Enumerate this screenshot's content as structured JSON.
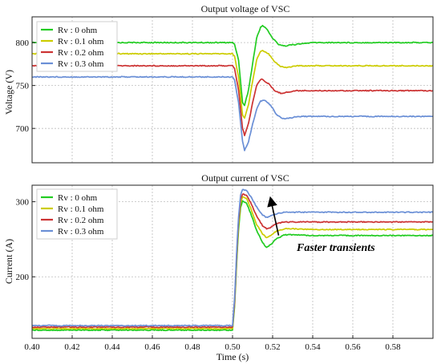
{
  "chart_data": [
    {
      "type": "line",
      "title": "Output voltage of VSC",
      "xlabel": "",
      "ylabel": "Voltage (V)",
      "xlim": [
        0.4,
        0.6
      ],
      "ylim": [
        660,
        830
      ],
      "yticks": [
        700,
        750,
        800
      ],
      "legend": "top-left",
      "grid": true,
      "series": [
        {
          "name": "Rv : 0 ohm",
          "color": "#22cc22",
          "points": [
            [
              0.4,
              800
            ],
            [
              0.5,
              800
            ],
            [
              0.501,
              798
            ],
            [
              0.503,
              780
            ],
            [
              0.505,
              730
            ],
            [
              0.506,
              727
            ],
            [
              0.508,
              745
            ],
            [
              0.51,
              775
            ],
            [
              0.512,
              805
            ],
            [
              0.514,
              818
            ],
            [
              0.515,
              820
            ],
            [
              0.517,
              816
            ],
            [
              0.52,
              805
            ],
            [
              0.523,
              798
            ],
            [
              0.526,
              796
            ],
            [
              0.528,
              797
            ],
            [
              0.532,
              798
            ],
            [
              0.54,
              800
            ],
            [
              0.6,
              800
            ]
          ]
        },
        {
          "name": "Rv : 0.1 ohm",
          "color": "#cccc00",
          "points": [
            [
              0.4,
              787
            ],
            [
              0.5,
              787
            ],
            [
              0.501,
              784
            ],
            [
              0.503,
              760
            ],
            [
              0.505,
              716
            ],
            [
              0.506,
              712
            ],
            [
              0.508,
              728
            ],
            [
              0.51,
              755
            ],
            [
              0.512,
              780
            ],
            [
              0.514,
              790
            ],
            [
              0.515,
              791
            ],
            [
              0.518,
              787
            ],
            [
              0.521,
              778
            ],
            [
              0.524,
              772
            ],
            [
              0.527,
              771
            ],
            [
              0.532,
              773
            ],
            [
              0.54,
              773
            ],
            [
              0.6,
              773
            ]
          ]
        },
        {
          "name": "Rv : 0.2 ohm",
          "color": "#cc3333",
          "points": [
            [
              0.4,
              773
            ],
            [
              0.5,
              773
            ],
            [
              0.501,
              770
            ],
            [
              0.503,
              745
            ],
            [
              0.505,
              700
            ],
            [
              0.506,
              692
            ],
            [
              0.508,
              706
            ],
            [
              0.51,
              730
            ],
            [
              0.512,
              750
            ],
            [
              0.514,
              757
            ],
            [
              0.515,
              757
            ],
            [
              0.518,
              752
            ],
            [
              0.521,
              744
            ],
            [
              0.524,
              741
            ],
            [
              0.527,
              742
            ],
            [
              0.532,
              744
            ],
            [
              0.54,
              744
            ],
            [
              0.6,
              744
            ]
          ]
        },
        {
          "name": "Rv : 0.3 ohm",
          "color": "#6a8fd6",
          "points": [
            [
              0.4,
              760
            ],
            [
              0.5,
              760
            ],
            [
              0.501,
              757
            ],
            [
              0.503,
              730
            ],
            [
              0.505,
              685
            ],
            [
              0.506,
              674
            ],
            [
              0.508,
              685
            ],
            [
              0.51,
              705
            ],
            [
              0.512,
              722
            ],
            [
              0.514,
              732
            ],
            [
              0.516,
              733
            ],
            [
              0.519,
              727
            ],
            [
              0.522,
              716
            ],
            [
              0.525,
              711
            ],
            [
              0.528,
              712
            ],
            [
              0.533,
              714
            ],
            [
              0.54,
              714
            ],
            [
              0.6,
              714
            ]
          ]
        }
      ]
    },
    {
      "type": "line",
      "title": "Output current of VSC",
      "xlabel": "Time (s)",
      "ylabel": "Current (A)",
      "xlim": [
        0.4,
        0.6
      ],
      "ylim": [
        118,
        322
      ],
      "yticks": [
        200,
        300
      ],
      "xticks": [
        0.4,
        0.42,
        0.44,
        0.46,
        0.48,
        0.5,
        0.52,
        0.54,
        0.56,
        0.58
      ],
      "xticklabels": [
        "0.40",
        "0.42",
        "0.44",
        "0.46",
        "0.48",
        "0.50",
        "0.52",
        "0.54",
        "0.56",
        "0.58"
      ],
      "legend": "top-left",
      "grid": true,
      "annotation": {
        "text": "Faster transients",
        "arrow_from": [
          0.523,
          255
        ],
        "arrow_to": [
          0.519,
          304
        ]
      },
      "series": [
        {
          "name": "Rv : 0 ohm",
          "color": "#22cc22",
          "points": [
            [
              0.4,
              129
            ],
            [
              0.5,
              129
            ],
            [
              0.501,
              160
            ],
            [
              0.502,
              215
            ],
            [
              0.503,
              262
            ],
            [
              0.504,
              292
            ],
            [
              0.505,
              301
            ],
            [
              0.507,
              298
            ],
            [
              0.509,
              285
            ],
            [
              0.512,
              262
            ],
            [
              0.515,
              245
            ],
            [
              0.517,
              239
            ],
            [
              0.519,
              243
            ],
            [
              0.522,
              251
            ],
            [
              0.526,
              256
            ],
            [
              0.53,
              256
            ],
            [
              0.54,
              255
            ],
            [
              0.6,
              255
            ]
          ]
        },
        {
          "name": "Rv : 0.1 ohm",
          "color": "#cccc00",
          "points": [
            [
              0.4,
              131
            ],
            [
              0.5,
              131
            ],
            [
              0.501,
              163
            ],
            [
              0.502,
              220
            ],
            [
              0.503,
              268
            ],
            [
              0.504,
              298
            ],
            [
              0.505,
              306
            ],
            [
              0.507,
              304
            ],
            [
              0.509,
              292
            ],
            [
              0.512,
              270
            ],
            [
              0.515,
              257
            ],
            [
              0.517,
              252
            ],
            [
              0.519,
              255
            ],
            [
              0.522,
              261
            ],
            [
              0.526,
              264
            ],
            [
              0.53,
              264
            ],
            [
              0.54,
              263
            ],
            [
              0.6,
              263
            ]
          ]
        },
        {
          "name": "Rv : 0.2 ohm",
          "color": "#cc3333",
          "points": [
            [
              0.4,
              133
            ],
            [
              0.5,
              133
            ],
            [
              0.501,
              166
            ],
            [
              0.502,
              225
            ],
            [
              0.503,
              274
            ],
            [
              0.504,
              303
            ],
            [
              0.505,
              310
            ],
            [
              0.507,
              309
            ],
            [
              0.509,
              299
            ],
            [
              0.512,
              281
            ],
            [
              0.515,
              268
            ],
            [
              0.517,
              264
            ],
            [
              0.519,
              266
            ],
            [
              0.522,
              271
            ],
            [
              0.526,
              273
            ],
            [
              0.53,
              273
            ],
            [
              0.54,
              273
            ],
            [
              0.6,
              273
            ]
          ]
        },
        {
          "name": "Rv : 0.3 ohm",
          "color": "#6a8fd6",
          "points": [
            [
              0.4,
              135
            ],
            [
              0.5,
              135
            ],
            [
              0.501,
              170
            ],
            [
              0.502,
              230
            ],
            [
              0.503,
              280
            ],
            [
              0.504,
              309
            ],
            [
              0.505,
              316
            ],
            [
              0.507,
              315
            ],
            [
              0.509,
              307
            ],
            [
              0.512,
              293
            ],
            [
              0.515,
              282
            ],
            [
              0.517,
              279
            ],
            [
              0.519,
              281
            ],
            [
              0.522,
              284
            ],
            [
              0.526,
              286
            ],
            [
              0.53,
              286
            ],
            [
              0.54,
              286
            ],
            [
              0.6,
              286
            ]
          ]
        }
      ]
    }
  ]
}
